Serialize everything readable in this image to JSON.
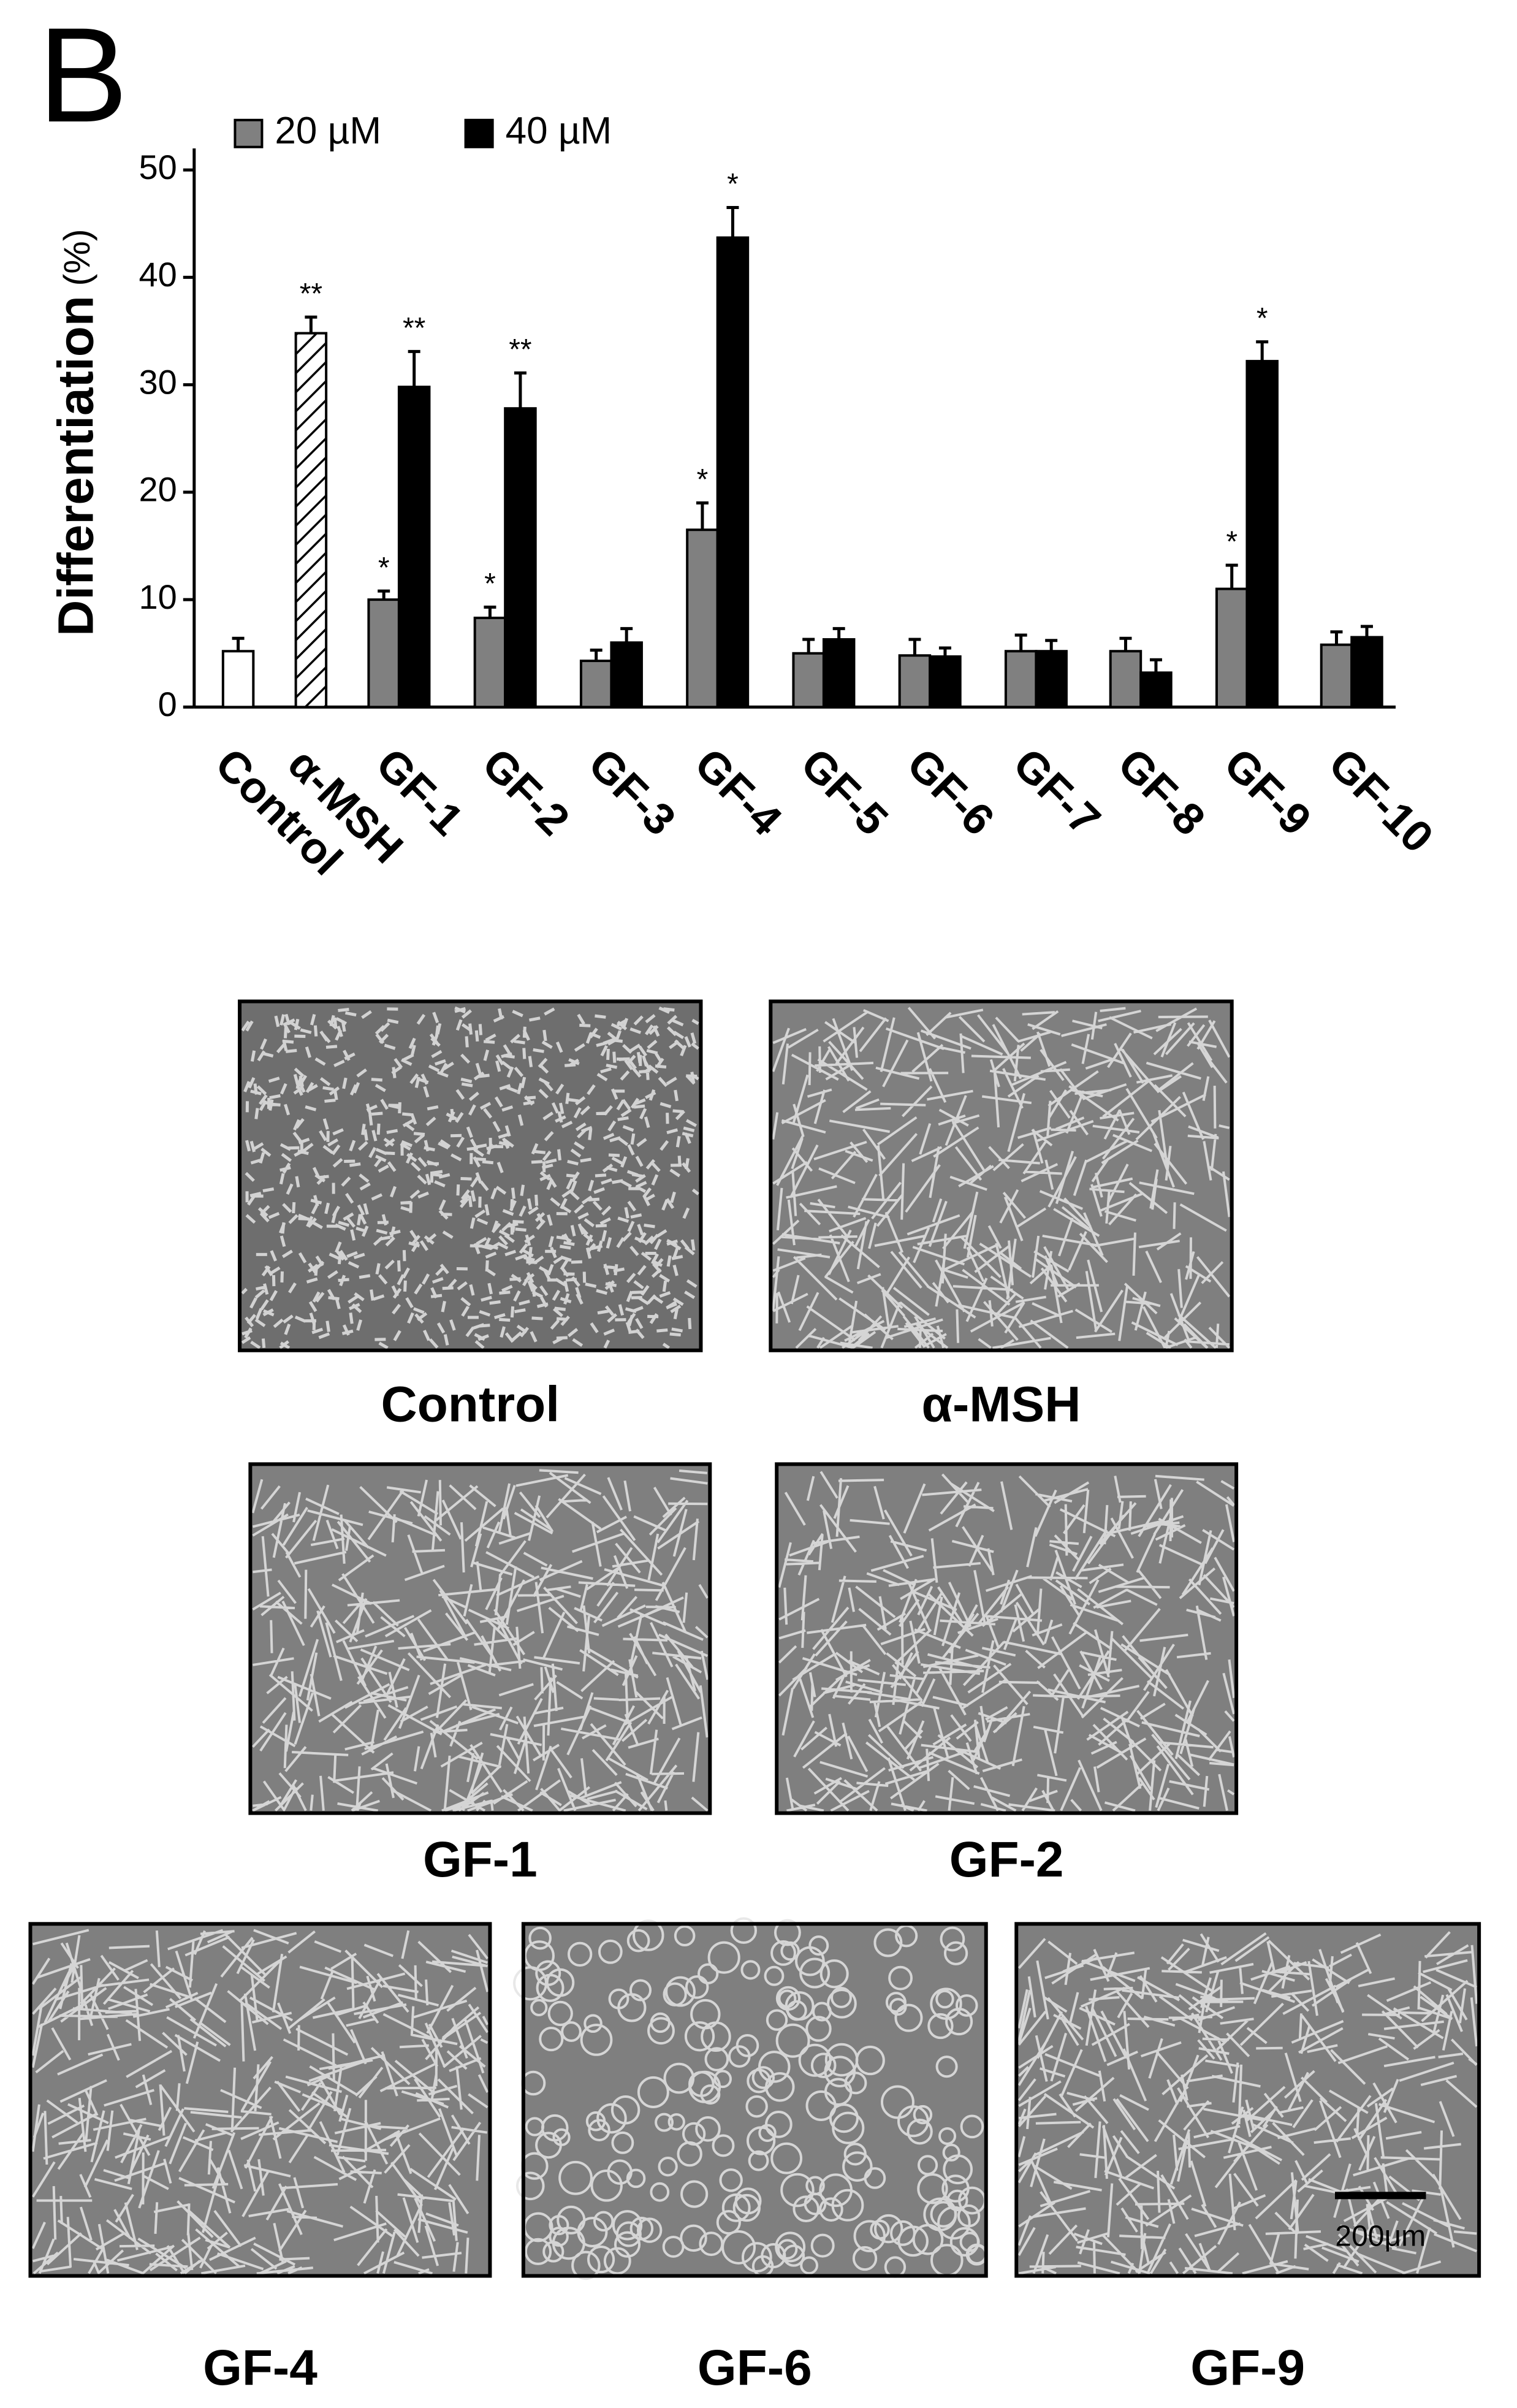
{
  "chart_data": {
    "type": "bar",
    "panel_label": "B",
    "ylabel": "Differentiation",
    "ylabel_unit": "(%)",
    "categories": [
      "Control",
      "α-MSH",
      "GF-1",
      "GF-2",
      "GF-3",
      "GF-4",
      "GF-5",
      "GF-6",
      "GF-7",
      "GF-8",
      "GF-9",
      "GF-10"
    ],
    "control_values": [
      5.2,
      34.8,
      null,
      null,
      null,
      null,
      null,
      null,
      null,
      null,
      null,
      null
    ],
    "control_errors": [
      1.2,
      1.5,
      null,
      null,
      null,
      null,
      null,
      null,
      null,
      null,
      null,
      null
    ],
    "control_annotations": [
      null,
      "**",
      null,
      null,
      null,
      null,
      null,
      null,
      null,
      null,
      null,
      null
    ],
    "control_styles": [
      "open",
      "hatched",
      null,
      null,
      null,
      null,
      null,
      null,
      null,
      null,
      null,
      null
    ],
    "series": [
      {
        "name": "20 µM",
        "color": "#808080",
        "values": [
          null,
          null,
          10.0,
          8.3,
          4.3,
          16.5,
          5.0,
          4.8,
          5.2,
          5.2,
          11.0,
          5.8
        ],
        "errors": [
          null,
          null,
          0.8,
          1.0,
          1.0,
          2.5,
          1.3,
          1.5,
          1.5,
          1.2,
          2.2,
          1.2
        ],
        "annotations": [
          null,
          null,
          "*",
          "*",
          null,
          "*",
          null,
          null,
          null,
          null,
          "*",
          null
        ]
      },
      {
        "name": "40 µM",
        "color": "#000000",
        "values": [
          null,
          null,
          29.8,
          27.8,
          6.0,
          43.7,
          6.3,
          4.7,
          5.2,
          3.2,
          32.2,
          6.5
        ],
        "errors": [
          null,
          null,
          3.3,
          3.3,
          1.3,
          2.8,
          1.0,
          0.8,
          1.0,
          1.2,
          1.8,
          1.0
        ],
        "annotations": [
          null,
          null,
          "**",
          "**",
          null,
          "*",
          null,
          null,
          null,
          null,
          "*",
          null
        ]
      }
    ],
    "ylim": [
      0,
      52
    ],
    "yticks": [
      0,
      10,
      20,
      30,
      40,
      50
    ]
  },
  "micrographs": {
    "panels": [
      {
        "label": "Control"
      },
      {
        "label": "α-MSH"
      },
      {
        "label": "GF-1"
      },
      {
        "label": "GF-2"
      },
      {
        "label": "GF-4"
      },
      {
        "label": "GF-6"
      },
      {
        "label": "GF-9"
      }
    ],
    "scale_bar": "200μm"
  }
}
